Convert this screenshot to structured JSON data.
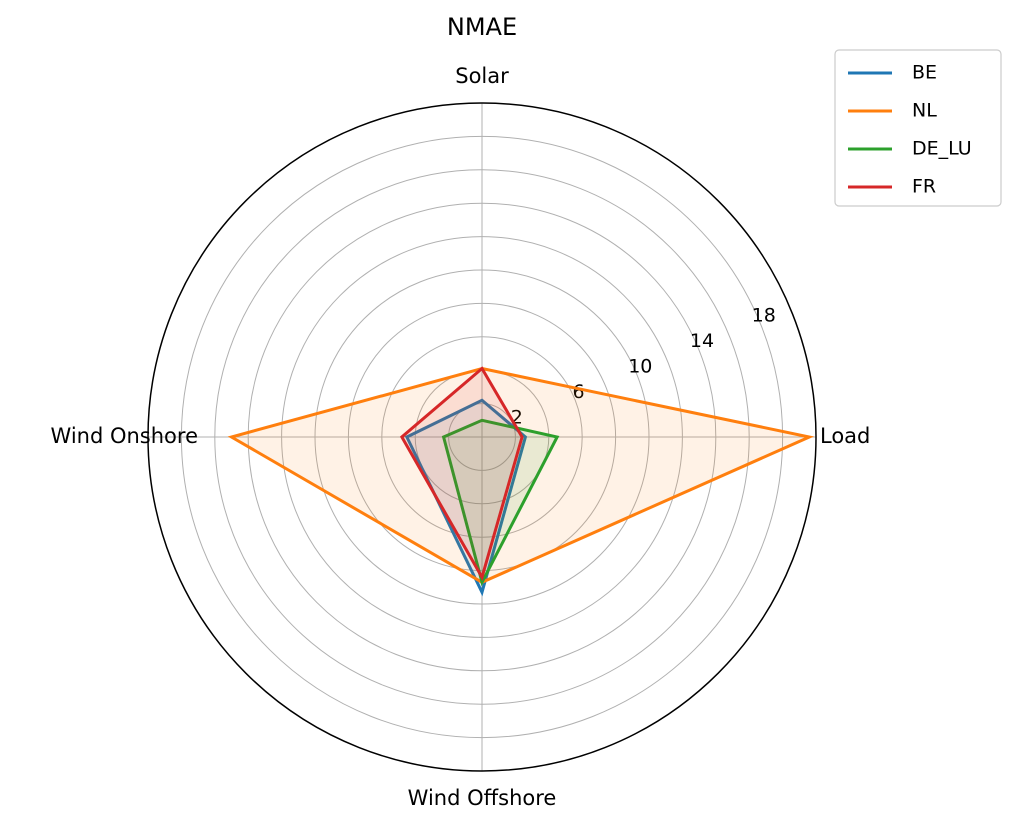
{
  "chart_data": {
    "type": "radar",
    "title": "NMAE",
    "axes": [
      "Solar",
      "Load",
      "Wind Offshore",
      "Wind Onshore"
    ],
    "r_ticks": [
      2,
      6,
      10,
      14,
      18
    ],
    "r_range": [
      0,
      20
    ],
    "grid": true,
    "legend_position": "top-right",
    "series": [
      {
        "name": "BE",
        "color": "#1f77b4",
        "values": [
          2.2,
          2.6,
          9.3,
          4.5
        ]
      },
      {
        "name": "NL",
        "color": "#ff7f0e",
        "values": [
          4.1,
          19.6,
          8.7,
          15.0
        ]
      },
      {
        "name": "DE_LU",
        "color": "#2ca02c",
        "values": [
          1.0,
          4.5,
          8.7,
          2.3
        ]
      },
      {
        "name": "FR",
        "color": "#d62728",
        "values": [
          4.1,
          2.4,
          8.4,
          4.8
        ]
      }
    ]
  }
}
